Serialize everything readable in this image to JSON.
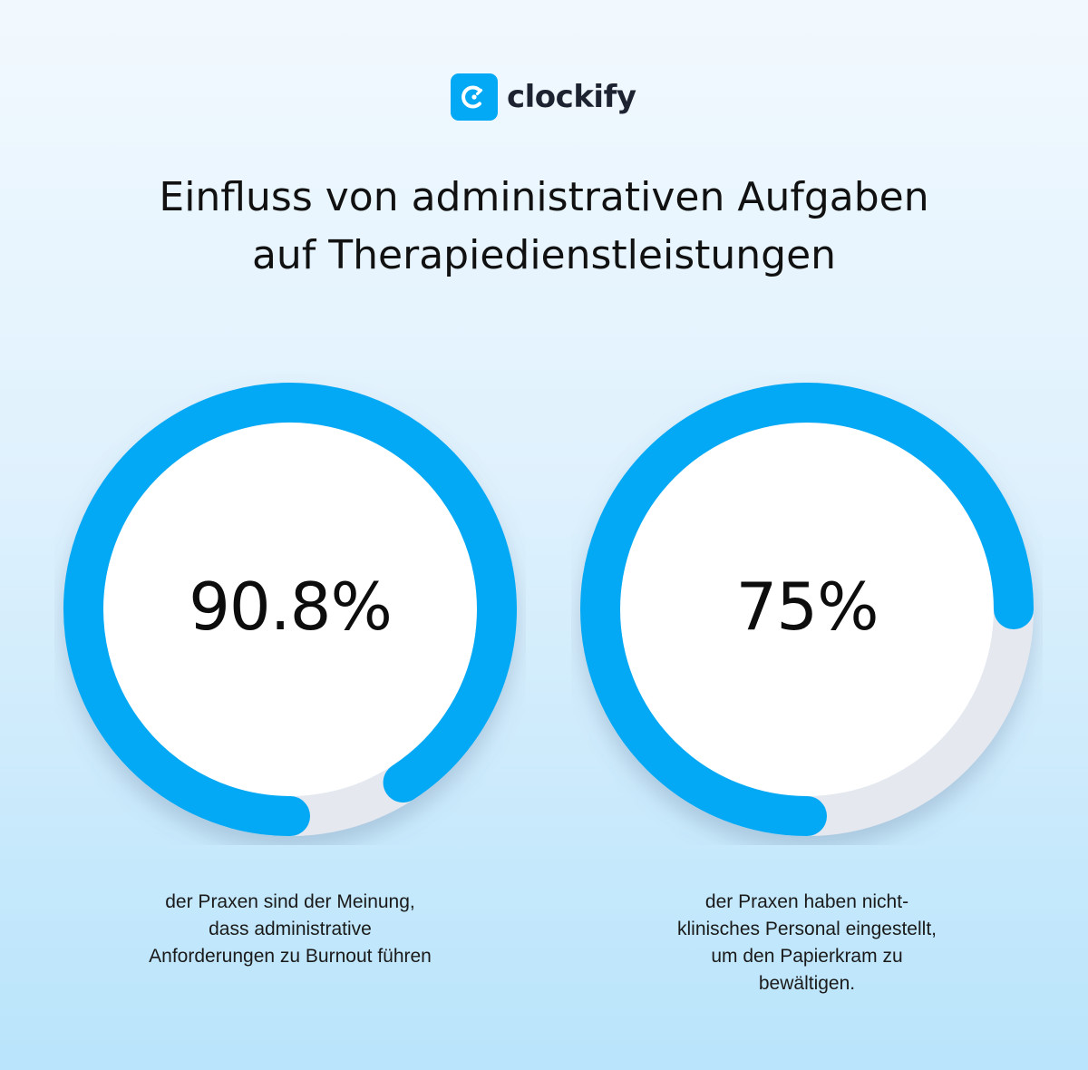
{
  "brand": {
    "name": "clockify",
    "icon": "clockify-logo-icon",
    "color": "#03a9f4"
  },
  "title_lines": [
    "Einfluss von administrativen Aufgaben",
    "auf Therapiedienstleistungen"
  ],
  "chart_data": [
    {
      "type": "pie",
      "variant": "donut-progress",
      "value": 90.8,
      "max": 100,
      "label": "90.8%",
      "caption_lines": [
        "der Praxen sind der Meinung,",
        "dass administrative",
        "Anforderungen zu Burnout führen"
      ],
      "color": "#03a9f4",
      "track_color": "#e6e8ef"
    },
    {
      "type": "pie",
      "variant": "donut-progress",
      "value": 75,
      "max": 100,
      "label": "75%",
      "caption_lines": [
        "der Praxen haben nicht-",
        "klinisches Personal eingestellt,",
        "um den Papierkram zu",
        "bewältigen."
      ],
      "color": "#03a9f4",
      "track_color": "#e6e8ef"
    }
  ]
}
